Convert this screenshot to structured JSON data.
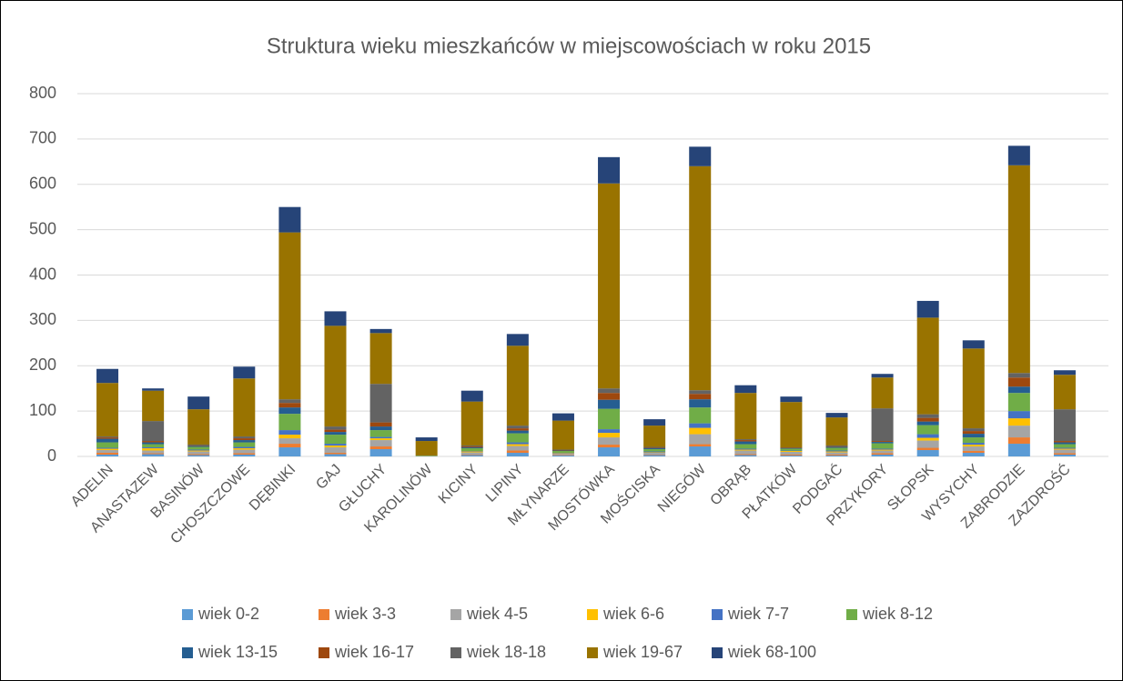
{
  "chart_data": {
    "type": "stacked_bar",
    "title": "Struktura wieku mieszkańców w miejscowościach w roku 2015",
    "categories": [
      "ADELIN",
      "ANASTAZEW",
      "BASINÓW",
      "CHOSZCZOWE",
      "DĘBINKI",
      "GAJ",
      "GŁUCHY",
      "KAROLINÓW",
      "KICINY",
      "LIPINY",
      "MŁYNARZE",
      "MOSTÓWKA",
      "MOŚCISKA",
      "NIEGÓW",
      "OBRĄB",
      "PŁATKÓW",
      "PODGAĆ",
      "PRZYKORY",
      "SŁOPSK",
      "WYSYCHY",
      "ZABRODZIE",
      "ZAZDROŚĆ"
    ],
    "series": [
      {
        "name": "wiek 0-2",
        "color": "#5b9bd5",
        "values": [
          4,
          5,
          3,
          4,
          20,
          5,
          16,
          0,
          3,
          8,
          2,
          20,
          3,
          22,
          3,
          2,
          2,
          4,
          14,
          8,
          28,
          4
        ]
      },
      {
        "name": "wiek 3-3",
        "color": "#ed7d31",
        "values": [
          4,
          2,
          2,
          3,
          8,
          3,
          6,
          0,
          1,
          5,
          1,
          6,
          1,
          5,
          2,
          2,
          2,
          3,
          5,
          4,
          14,
          3
        ]
      },
      {
        "name": "wiek 4-5",
        "color": "#a5a5a5",
        "values": [
          6,
          6,
          6,
          8,
          12,
          12,
          14,
          1,
          5,
          10,
          3,
          16,
          4,
          22,
          8,
          6,
          5,
          6,
          16,
          10,
          26,
          8
        ]
      },
      {
        "name": "wiek 6-6",
        "color": "#ffc000",
        "values": [
          3,
          5,
          2,
          3,
          8,
          4,
          4,
          0,
          2,
          4,
          1,
          10,
          1,
          14,
          2,
          2,
          2,
          2,
          6,
          4,
          16,
          2
        ]
      },
      {
        "name": "wiek 7-7",
        "color": "#4472c4",
        "values": [
          2,
          2,
          2,
          3,
          10,
          4,
          3,
          0,
          1,
          4,
          1,
          8,
          2,
          10,
          2,
          1,
          2,
          2,
          8,
          4,
          16,
          2
        ]
      },
      {
        "name": "wiek 8-12",
        "color": "#70ad47",
        "values": [
          12,
          7,
          6,
          10,
          36,
          20,
          15,
          1,
          6,
          20,
          4,
          45,
          5,
          35,
          10,
          4,
          6,
          12,
          20,
          12,
          40,
          8
        ]
      },
      {
        "name": "wiek 13-15",
        "color": "#255e91",
        "values": [
          8,
          4,
          2,
          5,
          14,
          6,
          8,
          0,
          2,
          6,
          1,
          20,
          2,
          18,
          6,
          1,
          2,
          3,
          8,
          8,
          14,
          4
        ]
      },
      {
        "name": "wiek 16-17",
        "color": "#9e480e",
        "values": [
          3,
          3,
          1,
          4,
          10,
          5,
          9,
          0,
          2,
          5,
          1,
          15,
          1,
          12,
          3,
          1,
          1,
          2,
          8,
          6,
          20,
          3
        ]
      },
      {
        "name": "wiek 18-18",
        "color": "#636363",
        "values": [
          2,
          44,
          2,
          4,
          8,
          7,
          85,
          0,
          2,
          6,
          1,
          10,
          2,
          8,
          2,
          1,
          2,
          72,
          8,
          6,
          10,
          70
        ]
      },
      {
        "name": "wiek 19-67",
        "color": "#997300",
        "values": [
          118,
          67,
          78,
          128,
          368,
          222,
          112,
          32,
          97,
          176,
          64,
          452,
          47,
          494,
          102,
          100,
          62,
          68,
          213,
          176,
          458,
          76
        ]
      },
      {
        "name": "wiek 68-100",
        "color": "#264478",
        "values": [
          31,
          5,
          28,
          26,
          56,
          32,
          9,
          8,
          24,
          26,
          16,
          58,
          14,
          43,
          17,
          12,
          10,
          8,
          37,
          18,
          43,
          10
        ]
      }
    ],
    "ylim": [
      0,
      800
    ],
    "yticks": [
      0,
      100,
      200,
      300,
      400,
      500,
      600,
      700,
      800
    ],
    "grid": true,
    "legend": "bottom"
  }
}
